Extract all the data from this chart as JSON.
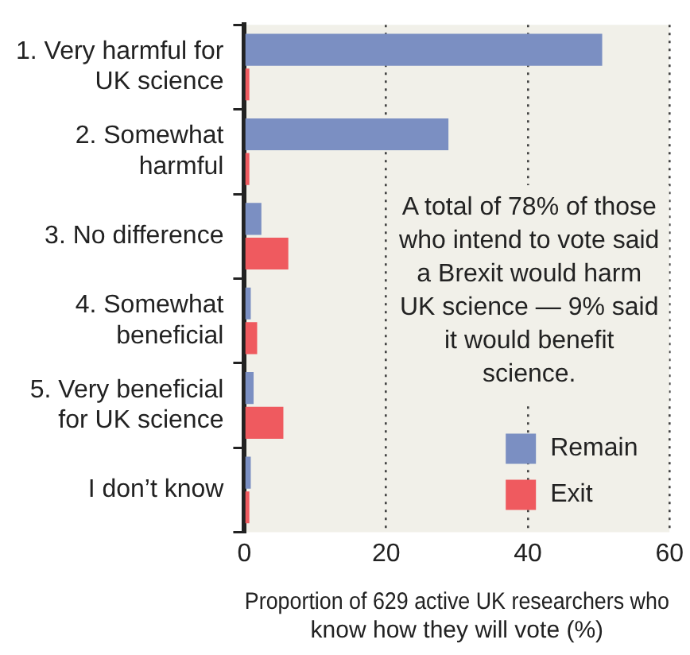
{
  "chart_data": {
    "type": "bar",
    "orientation": "horizontal",
    "categories": [
      "1. Very harmful for UK science",
      "2. Somewhat harmful",
      "3. No difference",
      "4. Somewhat beneficial",
      "5. Very beneficial for UK science",
      "I don’t know"
    ],
    "series": [
      {
        "name": "Remain",
        "color": "#7b8fc2",
        "values": [
          50.5,
          28.8,
          2.4,
          0.9,
          1.3,
          0.9
        ]
      },
      {
        "name": "Exit",
        "color": "#ef5a5f",
        "values": [
          0.7,
          0.7,
          6.2,
          1.8,
          5.5,
          0.7
        ]
      }
    ],
    "xlim": [
      0,
      60
    ],
    "xticks": [
      0,
      20,
      40,
      60
    ],
    "grid": "x",
    "xlabel": "Proportion of 629 active UK researchers who know how they will vote (%)",
    "annotations": [
      "A total of 78% of those who intend to vote said a Brexit would harm UK science — 9% said it would benefit science."
    ],
    "legend": "bottom right"
  }
}
